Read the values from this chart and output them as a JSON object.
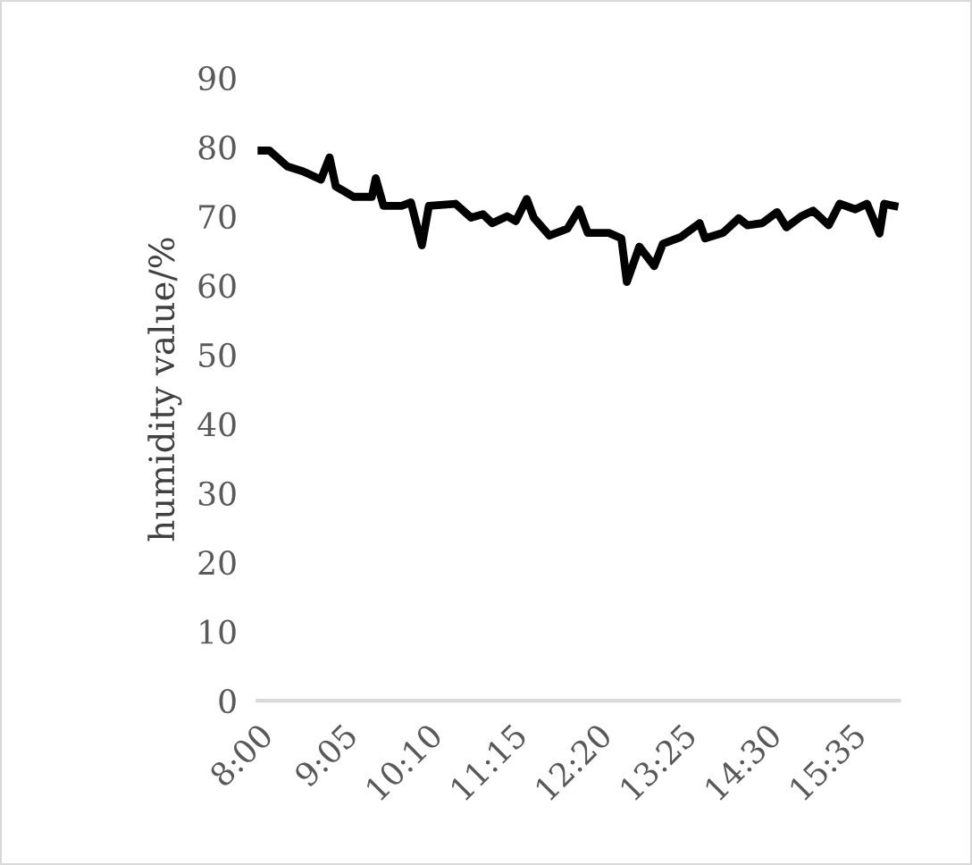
{
  "chart_data": {
    "type": "line",
    "ylabel": "humidity value/%",
    "x": [
      8.0,
      8.15,
      8.38,
      8.58,
      8.81,
      8.92,
      9.0,
      9.23,
      9.46,
      9.51,
      9.61,
      9.84,
      9.96,
      10.1,
      10.19,
      10.53,
      10.73,
      10.88,
      11.0,
      11.19,
      11.3,
      11.44,
      11.53,
      11.73,
      11.96,
      12.11,
      12.22,
      12.49,
      12.65,
      12.72,
      12.88,
      13.07,
      13.18,
      13.41,
      13.65,
      13.72,
      13.95,
      14.15,
      14.26,
      14.45,
      14.64,
      14.76,
      14.95,
      15.1,
      15.3,
      15.44,
      15.64,
      15.79,
      15.95,
      16.01,
      16.14
    ],
    "series": [
      {
        "color": "#000000",
        "values": [
          79.5,
          79.5,
          77.2,
          76.5,
          75.3,
          78.5,
          74.3,
          72.8,
          72.8,
          75.5,
          71.5,
          71.5,
          72,
          65.8,
          71.5,
          71.8,
          69.8,
          70.3,
          69,
          70,
          69.3,
          72.5,
          69.8,
          67.2,
          68.2,
          71,
          67.6,
          67.6,
          66.8,
          60.5,
          65.6,
          62.8,
          66,
          67,
          69,
          66.8,
          67.6,
          69.7,
          68.7,
          69,
          70.6,
          68.4,
          70,
          70.8,
          68.7,
          71.8,
          71,
          71.8,
          67.5,
          71.8,
          71.5
        ]
      }
    ],
    "xlim": [
      8.0,
      16.2
    ],
    "xticks": [
      {
        "value": 8.0,
        "label": "8:00"
      },
      {
        "value": 9.0833,
        "label": "9:05"
      },
      {
        "value": 10.1667,
        "label": "10:10"
      },
      {
        "value": 11.25,
        "label": "11:15"
      },
      {
        "value": 12.3333,
        "label": "12:20"
      },
      {
        "value": 13.4167,
        "label": "13:25"
      },
      {
        "value": 14.5,
        "label": "14:30"
      },
      {
        "value": 15.5833,
        "label": "15:35"
      }
    ],
    "ylim": [
      0,
      90
    ],
    "yticks": [
      0,
      10,
      20,
      30,
      40,
      50,
      60,
      70,
      80,
      90
    ],
    "grid": false,
    "legend": false,
    "marker": "none",
    "line_style": "solid"
  }
}
